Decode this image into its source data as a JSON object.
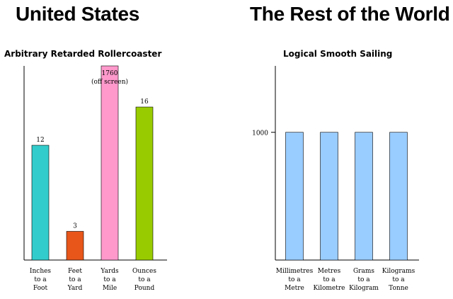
{
  "header": {
    "left_title": "United States",
    "right_title": "The Rest of the World"
  },
  "chart_data": [
    {
      "type": "bar",
      "title": "Arbitrary Retarded Rollercoaster",
      "categories": [
        [
          "Inches",
          "to a",
          "Foot"
        ],
        [
          "Feet",
          "to a",
          "Yard"
        ],
        [
          "Yards",
          "to a",
          "Mile"
        ],
        [
          "Ounces",
          "to a",
          "Pound"
        ]
      ],
      "values": [
        12,
        3,
        1760,
        16
      ],
      "value_labels": [
        "12",
        "3",
        "1760",
        "16"
      ],
      "annotations": [
        {
          "category_index": 2,
          "text": "(off screen)"
        }
      ],
      "colors": [
        "#33cccc",
        "#e8561a",
        "#ff99cc",
        "#99cc00"
      ],
      "ylim": [
        0,
        20.3
      ],
      "grid": false
    },
    {
      "type": "bar",
      "title": "Logical Smooth Sailing",
      "categories": [
        [
          "Millimetres",
          "to a",
          "Metre"
        ],
        [
          "Metres",
          "to a",
          "Kilometre"
        ],
        [
          "Grams",
          "to a",
          "Kilogram"
        ],
        [
          "Kilograms",
          "to a",
          "Tonne"
        ]
      ],
      "values": [
        1000,
        1000,
        1000,
        1000
      ],
      "colors": [
        "#99ccff",
        "#99ccff",
        "#99ccff",
        "#99ccff"
      ],
      "yticks": [
        1000
      ],
      "ytick_labels": [
        "1000"
      ],
      "ylim": [
        0,
        1520
      ],
      "grid": false
    }
  ]
}
